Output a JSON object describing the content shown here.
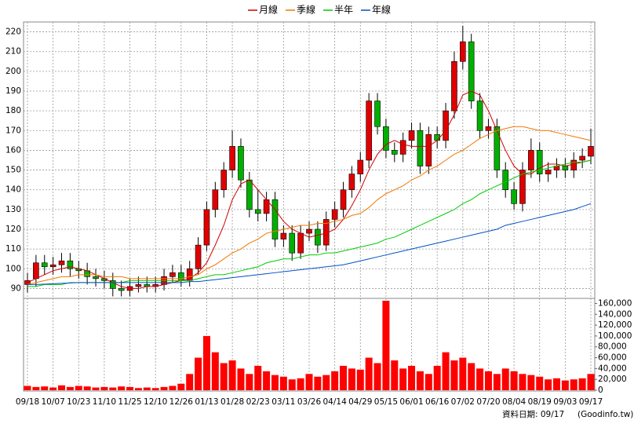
{
  "chart_data": [
    {
      "type": "candlestick",
      "categories": [
        "09/18",
        null,
        null,
        "10/07",
        null,
        null,
        "10/23",
        null,
        null,
        "11/10",
        null,
        null,
        "11/25",
        null,
        null,
        "12/10",
        null,
        null,
        "12/26",
        null,
        null,
        "01/13",
        null,
        null,
        "01/28",
        null,
        null,
        "02/23",
        null,
        null,
        "03/11",
        null,
        null,
        "03/26",
        null,
        null,
        "04/14",
        null,
        null,
        "04/29",
        null,
        null,
        "05/15",
        null,
        null,
        "06/01",
        null,
        null,
        "06/16",
        null,
        null,
        "07/02",
        null,
        null,
        "07/20",
        null,
        null,
        "08/04",
        null,
        null,
        "08/19",
        null,
        null,
        "09/03",
        null,
        null,
        "09/17"
      ],
      "open": [
        92,
        95,
        103,
        101,
        102,
        104,
        100,
        99,
        96,
        95,
        94,
        90,
        89,
        91,
        92,
        91,
        92,
        96,
        98,
        94,
        100,
        112,
        130,
        140,
        150,
        162,
        145,
        130,
        128,
        135,
        115,
        118,
        108,
        118,
        120,
        112,
        125,
        130,
        140,
        148,
        155,
        185,
        172,
        160,
        158,
        165,
        170,
        152,
        168,
        165,
        180,
        205,
        215,
        185,
        170,
        172,
        150,
        140,
        133,
        150,
        160,
        148,
        150,
        152,
        150,
        155,
        157
      ],
      "high": [
        98,
        107,
        107,
        106,
        108,
        108,
        104,
        103,
        100,
        99,
        98,
        94,
        95,
        96,
        96,
        96,
        100,
        102,
        102,
        104,
        116,
        134,
        144,
        154,
        170,
        166,
        149,
        140,
        139,
        139,
        122,
        122,
        122,
        124,
        124,
        129,
        134,
        144,
        152,
        159,
        189,
        189,
        176,
        164,
        169,
        174,
        174,
        172,
        172,
        184,
        210,
        223,
        219,
        189,
        176,
        176,
        154,
        144,
        154,
        166,
        164,
        154,
        156,
        156,
        159,
        161,
        171
      ],
      "low": [
        88,
        91,
        97,
        97,
        98,
        96,
        95,
        92,
        91,
        90,
        86,
        86,
        86,
        88,
        88,
        88,
        89,
        93,
        91,
        91,
        97,
        109,
        126,
        136,
        146,
        141,
        126,
        124,
        124,
        111,
        111,
        104,
        105,
        114,
        108,
        109,
        121,
        126,
        136,
        144,
        151,
        168,
        156,
        154,
        154,
        161,
        148,
        148,
        161,
        161,
        176,
        201,
        181,
        166,
        166,
        146,
        136,
        130,
        129,
        146,
        144,
        144,
        146,
        146,
        146,
        151,
        153
      ],
      "close": [
        94,
        103,
        101,
        102,
        104,
        100,
        99,
        96,
        95,
        94,
        90,
        89,
        91,
        92,
        91,
        92,
        96,
        98,
        94,
        100,
        112,
        130,
        140,
        150,
        162,
        145,
        130,
        128,
        135,
        115,
        118,
        108,
        118,
        120,
        112,
        125,
        130,
        140,
        148,
        155,
        185,
        172,
        160,
        158,
        165,
        170,
        152,
        168,
        165,
        180,
        205,
        215,
        185,
        170,
        172,
        150,
        140,
        133,
        150,
        160,
        148,
        150,
        152,
        150,
        155,
        157,
        162
      ],
      "up_color": "#e00000",
      "down_color": "#00b000",
      "series": [
        {
          "name": "月線",
          "color": "#d00000",
          "values": [
            93,
            95,
            97,
            99,
            100,
            101,
            100,
            99,
            97,
            95,
            93,
            91,
            90,
            90,
            91,
            91,
            92,
            93,
            94,
            95,
            98,
            103,
            112,
            122,
            135,
            143,
            145,
            140,
            135,
            130,
            124,
            120,
            118,
            116,
            117,
            118,
            120,
            125,
            132,
            140,
            150,
            158,
            163,
            165,
            163,
            162,
            162,
            162,
            165,
            170,
            178,
            188,
            190,
            188,
            180,
            170,
            160,
            152,
            148,
            148,
            151,
            153,
            153,
            152,
            153,
            154,
            155
          ]
        },
        {
          "name": "季線",
          "color": "#f07800",
          "values": [
            92,
            93,
            94,
            95,
            96,
            96,
            97,
            97,
            97,
            96,
            96,
            96,
            95,
            95,
            95,
            95,
            95,
            95,
            95,
            96,
            97,
            100,
            102,
            105,
            108,
            110,
            113,
            115,
            118,
            119,
            120,
            121,
            122,
            122,
            123,
            123,
            124,
            125,
            127,
            128,
            131,
            135,
            138,
            140,
            142,
            145,
            147,
            150,
            152,
            155,
            158,
            160,
            163,
            166,
            168,
            170,
            171,
            172,
            172,
            171,
            170,
            170,
            169,
            168,
            167,
            166,
            165
          ]
        },
        {
          "name": "半年",
          "color": "#00cc00",
          "values": [
            91,
            91,
            92,
            92,
            92,
            93,
            93,
            93,
            93,
            93,
            93,
            93,
            94,
            94,
            94,
            94,
            94,
            94,
            94,
            94,
            95,
            96,
            97,
            97,
            98,
            99,
            100,
            101,
            103,
            104,
            105,
            105,
            106,
            107,
            107,
            108,
            108,
            109,
            110,
            111,
            112,
            113,
            115,
            116,
            118,
            120,
            122,
            124,
            126,
            128,
            130,
            133,
            135,
            138,
            140,
            142,
            144,
            146,
            148,
            149,
            150,
            151,
            152,
            153,
            154,
            154,
            155
          ]
        },
        {
          "name": "年線",
          "color": "#0050c8",
          "values": [
            92,
            92,
            92.2,
            92.4,
            92.6,
            92.8,
            93,
            93,
            93,
            93,
            93,
            93,
            93,
            93,
            93,
            93,
            93,
            93,
            93,
            93.5,
            93.5,
            94,
            94.5,
            95,
            95.5,
            96,
            96.5,
            97,
            97.5,
            98,
            98.5,
            99,
            99.5,
            100,
            100.5,
            101,
            101.5,
            102,
            103,
            104,
            105,
            106,
            107,
            108,
            109,
            110,
            111,
            112,
            113,
            114,
            115,
            116,
            117,
            118,
            119,
            120,
            122,
            123,
            124,
            125,
            126,
            127,
            128,
            129,
            130,
            131.5,
            133
          ]
        }
      ],
      "ylim": [
        85,
        225
      ],
      "yticks": [
        90,
        100,
        110,
        120,
        130,
        140,
        150,
        160,
        170,
        180,
        190,
        200,
        210,
        220
      ],
      "grid": true
    },
    {
      "type": "bar",
      "color": "#ff0000",
      "values": [
        8000,
        6000,
        7000,
        5000,
        9000,
        6000,
        8000,
        7000,
        5000,
        6000,
        5000,
        7000,
        6000,
        4000,
        5000,
        4000,
        6000,
        8000,
        12000,
        30000,
        60000,
        100000,
        70000,
        50000,
        55000,
        40000,
        30000,
        45000,
        35000,
        28000,
        25000,
        20000,
        22000,
        30000,
        25000,
        28000,
        35000,
        45000,
        40000,
        38000,
        60000,
        50000,
        165000,
        55000,
        40000,
        45000,
        35000,
        30000,
        45000,
        70000,
        55000,
        60000,
        50000,
        40000,
        35000,
        30000,
        40000,
        35000,
        30000,
        28000,
        25000,
        20000,
        22000,
        18000,
        20000,
        22000,
        30000
      ],
      "ylim": [
        0,
        165000
      ],
      "yticks": [
        0,
        {
          "value": 20000,
          "label": "20,000"
        },
        {
          "value": 40000,
          "label": "40,000"
        },
        {
          "value": 60000,
          "label": "60,000"
        },
        {
          "value": 80000,
          "label": "80,000"
        },
        {
          "value": 100000,
          "label": "100,000"
        },
        {
          "value": 120000,
          "label": "120,000"
        },
        {
          "value": 140000,
          "label": "140,000"
        },
        {
          "value": 160000,
          "label": "160,000"
        }
      ],
      "grid": true
    }
  ],
  "footer": {
    "date_label": "資料日期: 09/17",
    "source": "(Goodinfo.tw)"
  }
}
